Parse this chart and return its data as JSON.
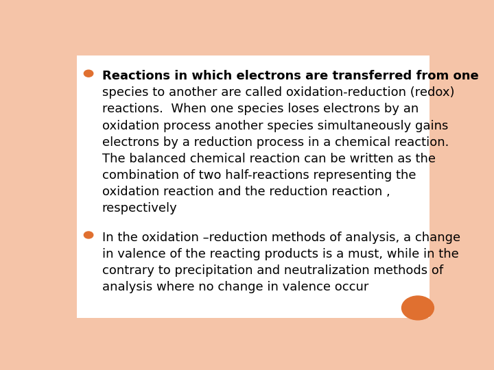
{
  "background_color": "#f5c4a8",
  "inner_background": "#ffffff",
  "bullet_color": "#e07030",
  "bullet1_line1": "Reactions in which electrons are transferred from one",
  "bullet1_lines": [
    "species to another are called oxidation-reduction (redox)",
    "reactions.  When one species loses electrons by an",
    "oxidation process another species simultaneously gains",
    "electrons by a reduction process in a chemical reaction.",
    "The balanced chemical reaction can be written as the",
    "combination of two half-reactions representing the",
    "oxidation reaction and the reduction reaction ,",
    "respectively"
  ],
  "bullet2_line1": "In the oxidation –reduction methods of analysis, a change",
  "bullet2_lines": [
    "in valence of the reacting products is a must, while in the",
    "contrary to precipitation and neutralization methods of",
    "analysis where no change in valence occur"
  ],
  "font_family": "DejaVu Sans",
  "font_size": 13.0,
  "text_color": "#000000",
  "circle_color": "#e07030"
}
